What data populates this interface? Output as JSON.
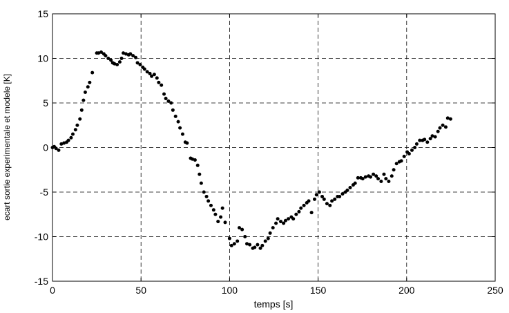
{
  "chart_data": {
    "type": "scatter",
    "xlabel": "temps [s]",
    "ylabel": "ecart sortie experimentale et modele [K]",
    "color": "#000000",
    "grid": true,
    "xlim": [
      0,
      250
    ],
    "xticks": [
      0,
      50,
      100,
      150,
      200,
      250
    ],
    "ylim": [
      -15,
      15
    ],
    "yticks": [
      -15,
      -10,
      -5,
      0,
      5,
      10,
      15
    ],
    "x": [
      0,
      1,
      2,
      3.5,
      5,
      6.5,
      8,
      9,
      10.5,
      11.5,
      13,
      14,
      15.5,
      16.5,
      17.5,
      18.5,
      20,
      21,
      22.5,
      25,
      26,
      27.5,
      29,
      30,
      31.5,
      33,
      34,
      35,
      36.5,
      38,
      39,
      40,
      41.5,
      43,
      44,
      45.5,
      47,
      48,
      49.5,
      51,
      52,
      53.5,
      55,
      56,
      57.5,
      59,
      60,
      61.5,
      63,
      64,
      65.5,
      67,
      68,
      69.5,
      71,
      72,
      73.5,
      75,
      76,
      78,
      79,
      80.5,
      82,
      83,
      84,
      85.5,
      87,
      88,
      89.5,
      91,
      92,
      93.5,
      95,
      96,
      97.5,
      100,
      101.1,
      102.7,
      104.4,
      105.5,
      107.1,
      108.7,
      109.8,
      111.4,
      113.1,
      114.2,
      115.8,
      117.4,
      118.5,
      120.2,
      121.8,
      122.9,
      124.5,
      126.2,
      127.2,
      128.9,
      130.5,
      131.6,
      133.2,
      134.9,
      136,
      137.6,
      139.2,
      140.3,
      142,
      143.6,
      144.7,
      146.3,
      148,
      149.1,
      150.7,
      152.3,
      153.4,
      155,
      156.7,
      157.8,
      159.4,
      161,
      162.1,
      163.8,
      165.4,
      166.5,
      168.1,
      169.8,
      170.9,
      172.5,
      174.1,
      175.2,
      176.8,
      178.5,
      179.6,
      181.2,
      182.8,
      183.9,
      185.6,
      187.2,
      188.3,
      189.9,
      191.6,
      192.7,
      194.3,
      195.9,
      197,
      198.6,
      200.3,
      201.4,
      203,
      204.6,
      205.7,
      207.4,
      209,
      210.1,
      211.7,
      213.4,
      214.5,
      216.1,
      217.7,
      218.8,
      220.4,
      222.1,
      223.2,
      224.8
    ],
    "values": [
      0,
      0.1,
      -0.1,
      -0.3,
      0.4,
      0.5,
      0.6,
      0.8,
      1.1,
      1.5,
      2.0,
      2.5,
      3.2,
      4.2,
      5.3,
      6.2,
      6.8,
      7.3,
      8.4,
      10.6,
      10.6,
      10.7,
      10.5,
      10.3,
      10.0,
      9.8,
      9.5,
      9.4,
      9.3,
      9.6,
      10.0,
      10.6,
      10.5,
      10.4,
      10.5,
      10.3,
      10.1,
      9.5,
      9.3,
      9.0,
      8.8,
      8.5,
      8.3,
      8.0,
      8.2,
      7.8,
      7.3,
      7.0,
      6.0,
      5.5,
      5.2,
      5.0,
      4.2,
      3.5,
      2.9,
      2.2,
      1.5,
      0.6,
      0.5,
      -1.2,
      -1.3,
      -1.4,
      -2.0,
      -3.0,
      -4.0,
      -5.0,
      -5.5,
      -6.0,
      -6.5,
      -7.0,
      -7.5,
      -8.3,
      -7.8,
      -6.8,
      -8.4,
      -10.2,
      -11.0,
      -10.8,
      -10.5,
      -9.0,
      -9.2,
      -10.0,
      -10.8,
      -10.9,
      -11.3,
      -11.2,
      -10.9,
      -11.3,
      -11.0,
      -10.5,
      -10.2,
      -9.6,
      -9.0,
      -8.5,
      -8.0,
      -8.3,
      -8.5,
      -8.2,
      -8.0,
      -7.8,
      -8.0,
      -7.5,
      -7.2,
      -6.8,
      -6.5,
      -6.2,
      -6.0,
      -7.3,
      -5.8,
      -5.3,
      -5.0,
      -5.5,
      -5.8,
      -6.3,
      -6.5,
      -6.0,
      -5.8,
      -5.5,
      -5.5,
      -5.2,
      -5.0,
      -4.8,
      -4.5,
      -4.2,
      -4.0,
      -3.4,
      -3.4,
      -3.5,
      -3.3,
      -3.2,
      -3.3,
      -3.0,
      -3.2,
      -3.5,
      -3.8,
      -3.0,
      -3.5,
      -3.8,
      -3.2,
      -2.5,
      -1.8,
      -1.6,
      -1.5,
      -1.0,
      -0.5,
      -0.7,
      -0.3,
      0.0,
      0.4,
      0.8,
      0.8,
      0.9,
      0.6,
      1.0,
      1.3,
      1.2,
      1.8,
      2.2,
      2.5,
      2.3,
      3.3,
      3.2
    ]
  }
}
